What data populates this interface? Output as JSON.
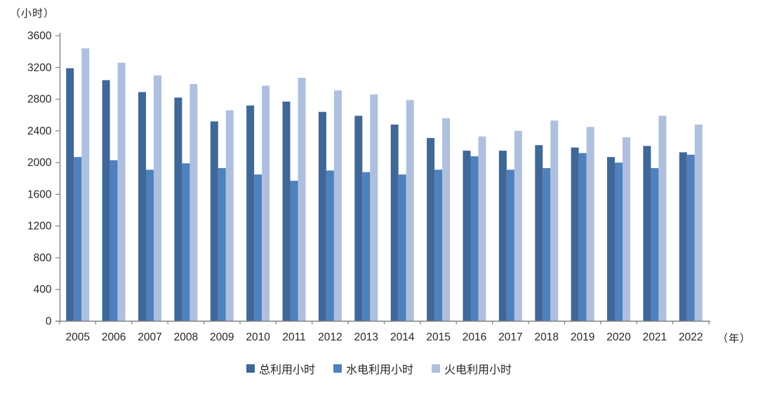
{
  "chart": {
    "y_axis_unit": "（小时）",
    "x_axis_unit": "（年）",
    "axis_color": "#808080",
    "text_color": "#262626",
    "background": "#ffffff"
  },
  "chart_data": {
    "type": "bar",
    "title": "",
    "categories": [
      "2005",
      "2006",
      "2007",
      "2008",
      "2009",
      "2010",
      "2011",
      "2012",
      "2013",
      "2014",
      "2015",
      "2016",
      "2017",
      "2018",
      "2019",
      "2020",
      "2021",
      "2022"
    ],
    "series": [
      {
        "name": "总利用小时",
        "color": "#3F6899",
        "values": [
          3190,
          3040,
          2890,
          2820,
          2520,
          2720,
          2770,
          2640,
          2590,
          2480,
          2310,
          2150,
          2150,
          2220,
          2190,
          2070,
          2210,
          2130
        ]
      },
      {
        "name": "水电利用小时",
        "color": "#4E81BD",
        "values": [
          2070,
          2030,
          1910,
          1990,
          1930,
          1850,
          1770,
          1900,
          1880,
          1850,
          1910,
          2080,
          1910,
          1930,
          2120,
          2000,
          1930,
          2100
        ]
      },
      {
        "name": "火电利用小时",
        "color": "#AFC0DF",
        "values": [
          3440,
          3260,
          3100,
          2990,
          2660,
          2970,
          3070,
          2910,
          2860,
          2790,
          2560,
          2330,
          2400,
          2530,
          2450,
          2320,
          2590,
          2480
        ]
      }
    ],
    "xlabel": "（年）",
    "ylabel": "（小时）",
    "ylim": [
      0,
      3600
    ],
    "ytick_step": 400,
    "grid": false,
    "legend_position": "bottom"
  }
}
